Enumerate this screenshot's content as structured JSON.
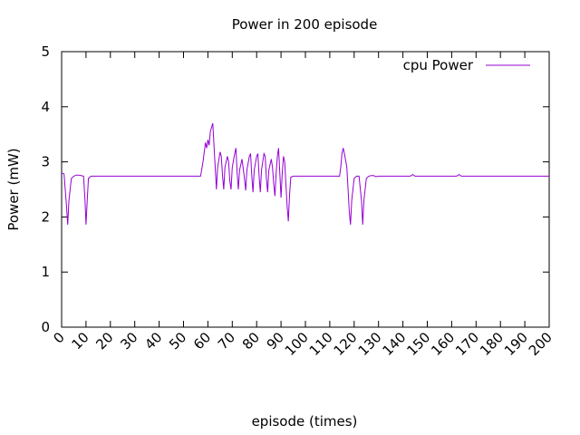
{
  "chart_data": {
    "type": "line",
    "title": "Power in 200 episode",
    "xlabel": "episode (times)",
    "ylabel": "Power (mW)",
    "xlim": [
      0,
      200
    ],
    "ylim": [
      0,
      5
    ],
    "x_ticks": [
      0,
      10,
      20,
      30,
      40,
      50,
      60,
      70,
      80,
      90,
      100,
      110,
      120,
      130,
      140,
      150,
      160,
      170,
      180,
      190,
      200
    ],
    "y_ticks": [
      0,
      1,
      2,
      3,
      4,
      5
    ],
    "grid": false,
    "legend_position": "top-right",
    "series": [
      {
        "name": "cpu Power",
        "color": "#9400d3",
        "points": [
          [
            0,
            2.8
          ],
          [
            1,
            2.78
          ],
          [
            2,
            2.2
          ],
          [
            2.5,
            1.86
          ],
          [
            3,
            2.3
          ],
          [
            4,
            2.7
          ],
          [
            5,
            2.74
          ],
          [
            6,
            2.76
          ],
          [
            7,
            2.76
          ],
          [
            8,
            2.75
          ],
          [
            9,
            2.74
          ],
          [
            9.6,
            2.3
          ],
          [
            10,
            1.86
          ],
          [
            10.5,
            2.3
          ],
          [
            11,
            2.7
          ],
          [
            12,
            2.74
          ],
          [
            20,
            2.74
          ],
          [
            30,
            2.74
          ],
          [
            40,
            2.74
          ],
          [
            50,
            2.74
          ],
          [
            57,
            2.74
          ],
          [
            58,
            3.0
          ],
          [
            59,
            3.35
          ],
          [
            59.5,
            3.25
          ],
          [
            60,
            3.4
          ],
          [
            60.5,
            3.3
          ],
          [
            61,
            3.55
          ],
          [
            62,
            3.7
          ],
          [
            62.5,
            3.3
          ],
          [
            63,
            2.9
          ],
          [
            63.5,
            2.5
          ],
          [
            64,
            2.9
          ],
          [
            65,
            3.18
          ],
          [
            65.5,
            3.1
          ],
          [
            66,
            2.75
          ],
          [
            66.5,
            2.5
          ],
          [
            67,
            2.9
          ],
          [
            68,
            3.1
          ],
          [
            68.5,
            3.0
          ],
          [
            69,
            2.65
          ],
          [
            69.5,
            2.5
          ],
          [
            70,
            2.9
          ],
          [
            71,
            3.15
          ],
          [
            71.5,
            3.25
          ],
          [
            72,
            2.8
          ],
          [
            72.5,
            2.5
          ],
          [
            73,
            2.85
          ],
          [
            74,
            3.05
          ],
          [
            75,
            2.7
          ],
          [
            75.5,
            2.48
          ],
          [
            76,
            2.85
          ],
          [
            77,
            3.1
          ],
          [
            77.5,
            3.15
          ],
          [
            78,
            2.75
          ],
          [
            78.5,
            2.45
          ],
          [
            79,
            2.85
          ],
          [
            80,
            3.1
          ],
          [
            80.5,
            3.15
          ],
          [
            81,
            2.75
          ],
          [
            81.5,
            2.45
          ],
          [
            82,
            2.85
          ],
          [
            83,
            3.15
          ],
          [
            83.5,
            3.1
          ],
          [
            84,
            2.7
          ],
          [
            84.5,
            2.45
          ],
          [
            85,
            2.85
          ],
          [
            86,
            3.05
          ],
          [
            86.5,
            2.9
          ],
          [
            87,
            2.6
          ],
          [
            87.5,
            2.38
          ],
          [
            88,
            2.8
          ],
          [
            88.5,
            3.1
          ],
          [
            89,
            3.25
          ],
          [
            89.5,
            2.8
          ],
          [
            90,
            2.35
          ],
          [
            90.5,
            2.8
          ],
          [
            91,
            3.1
          ],
          [
            91.5,
            3.0
          ],
          [
            92,
            2.6
          ],
          [
            92.5,
            2.2
          ],
          [
            93,
            1.92
          ],
          [
            93.5,
            2.4
          ],
          [
            94,
            2.72
          ],
          [
            95,
            2.74
          ],
          [
            100,
            2.74
          ],
          [
            110,
            2.74
          ],
          [
            114,
            2.74
          ],
          [
            114.5,
            2.9
          ],
          [
            115,
            3.15
          ],
          [
            115.5,
            3.25
          ],
          [
            116,
            3.15
          ],
          [
            117,
            2.9
          ],
          [
            117.5,
            2.5
          ],
          [
            118,
            2.1
          ],
          [
            118.5,
            1.86
          ],
          [
            119,
            2.3
          ],
          [
            120,
            2.7
          ],
          [
            121,
            2.74
          ],
          [
            122,
            2.74
          ],
          [
            123,
            2.3
          ],
          [
            123.5,
            1.86
          ],
          [
            124,
            2.3
          ],
          [
            125,
            2.7
          ],
          [
            126,
            2.74
          ],
          [
            127,
            2.75
          ],
          [
            128,
            2.75
          ],
          [
            129,
            2.73
          ],
          [
            130,
            2.74
          ],
          [
            140,
            2.74
          ],
          [
            143,
            2.74
          ],
          [
            144,
            2.77
          ],
          [
            145,
            2.74
          ],
          [
            150,
            2.74
          ],
          [
            160,
            2.74
          ],
          [
            162,
            2.74
          ],
          [
            163,
            2.77
          ],
          [
            164,
            2.74
          ],
          [
            170,
            2.74
          ],
          [
            180,
            2.74
          ],
          [
            190,
            2.74
          ],
          [
            200,
            2.74
          ]
        ]
      }
    ]
  }
}
